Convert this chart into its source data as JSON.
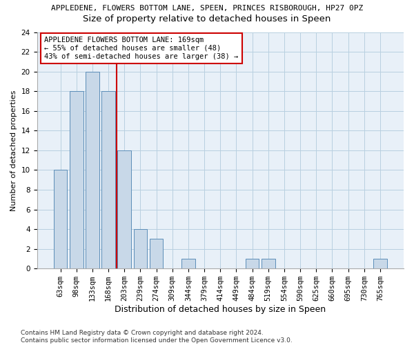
{
  "title_line1": "APPLEDENE, FLOWERS BOTTOM LANE, SPEEN, PRINCES RISBOROUGH, HP27 0PZ",
  "title_line2": "Size of property relative to detached houses in Speen",
  "xlabel": "Distribution of detached houses by size in Speen",
  "ylabel": "Number of detached properties",
  "categories": [
    "63sqm",
    "98sqm",
    "133sqm",
    "168sqm",
    "203sqm",
    "239sqm",
    "274sqm",
    "309sqm",
    "344sqm",
    "379sqm",
    "414sqm",
    "449sqm",
    "484sqm",
    "519sqm",
    "554sqm",
    "590sqm",
    "625sqm",
    "660sqm",
    "695sqm",
    "730sqm",
    "765sqm"
  ],
  "values": [
    10,
    18,
    20,
    18,
    12,
    4,
    3,
    0,
    1,
    0,
    0,
    0,
    1,
    1,
    0,
    0,
    0,
    0,
    0,
    0,
    1
  ],
  "bar_color": "#c8d8e8",
  "bar_edge_color": "#5b8db8",
  "grid_color": "#b8cfe0",
  "background_color": "#e8f0f8",
  "red_line_x": 3.5,
  "annotation_text_line1": "APPLEDENE FLOWERS BOTTOM LANE: 169sqm",
  "annotation_text_line2": "← 55% of detached houses are smaller (48)",
  "annotation_text_line3": "43% of semi-detached houses are larger (38) →",
  "annotation_box_color": "#ffffff",
  "annotation_box_edge_color": "#cc0000",
  "red_line_color": "#cc0000",
  "ylim": [
    0,
    24
  ],
  "yticks": [
    0,
    2,
    4,
    6,
    8,
    10,
    12,
    14,
    16,
    18,
    20,
    22,
    24
  ],
  "footer_line1": "Contains HM Land Registry data © Crown copyright and database right 2024.",
  "footer_line2": "Contains public sector information licensed under the Open Government Licence v3.0.",
  "title1_fontsize": 8.0,
  "title2_fontsize": 9.5,
  "xlabel_fontsize": 9.0,
  "ylabel_fontsize": 8.0,
  "tick_fontsize": 7.5,
  "annotation_fontsize": 7.5,
  "footer_fontsize": 6.5
}
